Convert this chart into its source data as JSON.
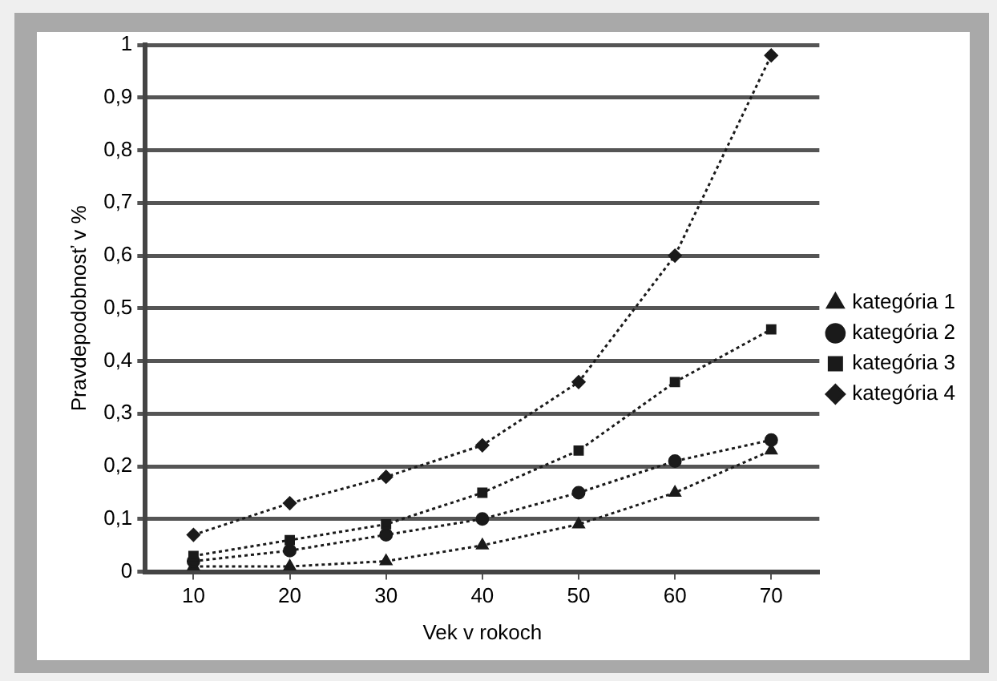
{
  "chart_data": {
    "type": "line",
    "xlabel": "Vek v rokoch",
    "ylabel": "Pravdepodobnosť v %",
    "x": [
      10,
      20,
      30,
      40,
      50,
      60,
      70
    ],
    "series": [
      {
        "name": "kategória 1",
        "color": "#1a1a1a",
        "marker": "triangle",
        "values": [
          0.01,
          0.01,
          0.02,
          0.05,
          0.09,
          0.15,
          0.23
        ]
      },
      {
        "name": "kategória 2",
        "color": "#1a1a1a",
        "marker": "circle",
        "values": [
          0.02,
          0.04,
          0.07,
          0.1,
          0.15,
          0.21,
          0.25
        ]
      },
      {
        "name": "kategória 3",
        "color": "#1a1a1a",
        "marker": "square",
        "values": [
          0.03,
          0.06,
          0.09,
          0.15,
          0.23,
          0.36,
          0.46
        ]
      },
      {
        "name": "kategória 4",
        "color": "#1a1a1a",
        "marker": "diamond",
        "values": [
          0.07,
          0.13,
          0.18,
          0.24,
          0.36,
          0.6,
          0.98
        ]
      }
    ],
    "xlim": [
      5,
      75
    ],
    "xticks": [
      10,
      20,
      30,
      40,
      50,
      60,
      70
    ],
    "ylim": [
      0,
      1
    ],
    "yticks": [
      0,
      {
        "value": 0.1,
        "label": "0,1"
      },
      {
        "value": 0.2,
        "label": "0,2"
      },
      {
        "value": 0.3,
        "label": "0,3"
      },
      {
        "value": 0.4,
        "label": "0,4"
      },
      {
        "value": 0.5,
        "label": "0,5"
      },
      {
        "value": 0.6,
        "label": "0,6"
      },
      {
        "value": 0.7,
        "label": "0,7"
      },
      {
        "value": 0.8,
        "label": "0,8"
      },
      {
        "value": 0.9,
        "label": "0,9"
      },
      1
    ],
    "grid": "y",
    "legend": "right",
    "line_style": "dotted"
  }
}
